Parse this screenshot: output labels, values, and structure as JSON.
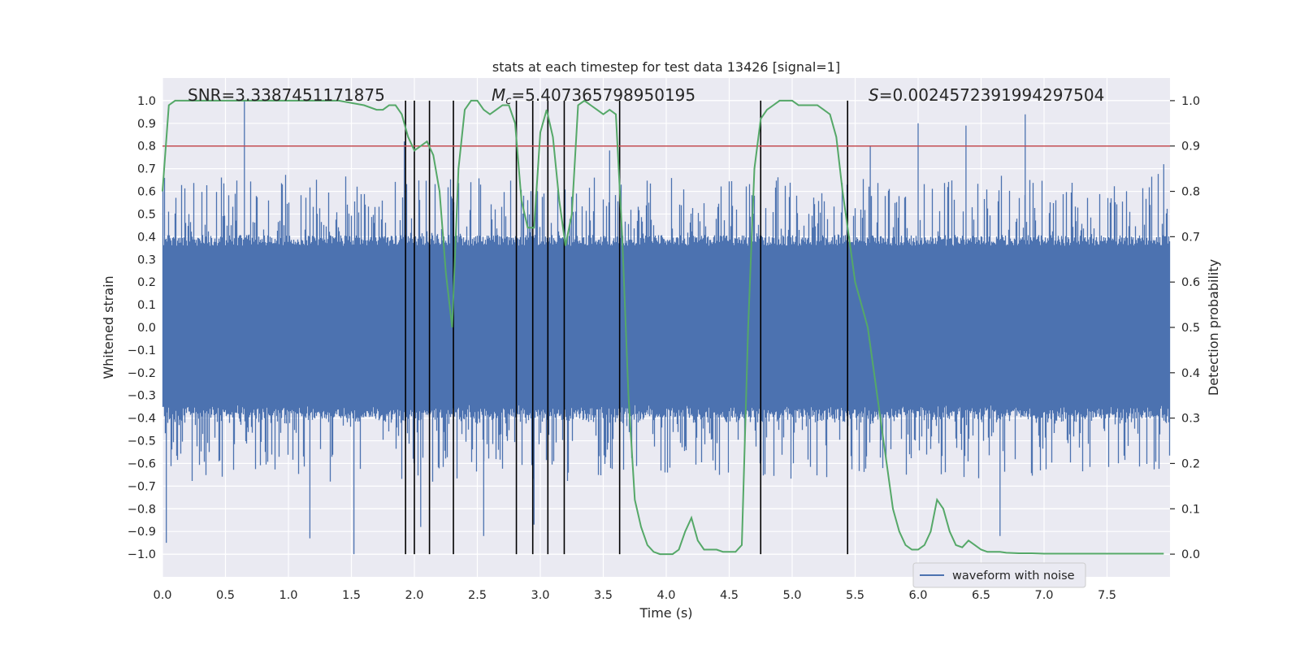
{
  "chart_data": {
    "type": "line",
    "title": "stats at each timestep for test data 13426 [signal=1]",
    "xlabel": "Time (s)",
    "ylabel": "Whitened strain",
    "y2label": "Detection probability",
    "xlim": [
      0.0,
      8.0
    ],
    "ylim": [
      -1.1,
      1.1
    ],
    "y2lim": [
      -0.05,
      1.05
    ],
    "x_ticks": [
      0.0,
      0.5,
      1.0,
      1.5,
      2.0,
      2.5,
      3.0,
      3.5,
      4.0,
      4.5,
      5.0,
      5.5,
      6.0,
      6.5,
      7.0,
      7.5
    ],
    "x_tick_labels": [
      "0.0",
      "0.5",
      "1.0",
      "1.5",
      "2.0",
      "2.5",
      "3.0",
      "3.5",
      "4.0",
      "4.5",
      "5.0",
      "5.5",
      "6.0",
      "6.5",
      "7.0",
      "7.5"
    ],
    "y_ticks": [
      -1.0,
      -0.9,
      -0.8,
      -0.7,
      -0.6,
      -0.5,
      -0.4,
      -0.3,
      -0.2,
      -0.1,
      0.0,
      0.1,
      0.2,
      0.3,
      0.4,
      0.5,
      0.6,
      0.7,
      0.8,
      0.9,
      1.0
    ],
    "y_tick_labels": [
      "−1.0",
      "−0.9",
      "−0.8",
      "−0.7",
      "−0.6",
      "−0.5",
      "−0.4",
      "−0.3",
      "−0.2",
      "−0.1",
      "0.0",
      "0.1",
      "0.2",
      "0.3",
      "0.4",
      "0.5",
      "0.6",
      "0.7",
      "0.8",
      "0.9",
      "1.0"
    ],
    "y2_ticks": [
      0.0,
      0.1,
      0.2,
      0.3,
      0.4,
      0.5,
      0.6,
      0.7,
      0.8,
      0.9,
      1.0
    ],
    "y2_tick_labels": [
      "0.0",
      "0.1",
      "0.2",
      "0.3",
      "0.4",
      "0.5",
      "0.6",
      "0.7",
      "0.8",
      "0.9",
      "1.0"
    ],
    "grid": true,
    "annotations": {
      "snr": "SNR=3.3387451171875",
      "mc_symbol": "M",
      "mc_sub": "c",
      "mc_value": "=5.407365798950195",
      "s_symbol": "S",
      "s_value": "=0.0024572391994297504"
    },
    "threshold": {
      "y": 0.8,
      "color": "#c44e52"
    },
    "vertical_lines_x": [
      1.93,
      2.0,
      2.12,
      2.31,
      2.81,
      2.94,
      3.06,
      3.19,
      3.63,
      4.75,
      5.44
    ],
    "waveform": {
      "name": "waveform with noise",
      "color": "#4c72b0",
      "sample_rate_hz": 2048,
      "duration_s": 8.0,
      "envelope_amplitude": 0.4,
      "spikes": [
        {
          "x": 0.03,
          "y": -0.95
        },
        {
          "x": 0.65,
          "y": 1.0
        },
        {
          "x": 1.17,
          "y": -0.93
        },
        {
          "x": 1.52,
          "y": -1.0
        },
        {
          "x": 1.92,
          "y": 0.82
        },
        {
          "x": 2.05,
          "y": -0.88
        },
        {
          "x": 2.55,
          "y": -0.92
        },
        {
          "x": 2.95,
          "y": -0.87
        },
        {
          "x": 3.55,
          "y": 0.78
        },
        {
          "x": 5.62,
          "y": 0.8
        },
        {
          "x": 6.0,
          "y": 0.9
        },
        {
          "x": 6.38,
          "y": 0.89
        },
        {
          "x": 6.65,
          "y": -0.92
        },
        {
          "x": 6.85,
          "y": 0.94
        },
        {
          "x": 7.95,
          "y": 0.72
        }
      ]
    },
    "detection_probability": {
      "color": "#55a868",
      "x": [
        0.0,
        0.05,
        0.1,
        0.2,
        0.4,
        0.6,
        0.8,
        1.0,
        1.2,
        1.4,
        1.6,
        1.7,
        1.75,
        1.8,
        1.85,
        1.9,
        1.95,
        2.0,
        2.05,
        2.1,
        2.15,
        2.2,
        2.25,
        2.3,
        2.35,
        2.4,
        2.45,
        2.5,
        2.55,
        2.6,
        2.65,
        2.7,
        2.75,
        2.8,
        2.85,
        2.9,
        2.95,
        3.0,
        3.05,
        3.1,
        3.15,
        3.2,
        3.25,
        3.3,
        3.35,
        3.4,
        3.45,
        3.5,
        3.55,
        3.6,
        3.65,
        3.7,
        3.75,
        3.8,
        3.85,
        3.9,
        3.95,
        4.0,
        4.05,
        4.1,
        4.15,
        4.2,
        4.25,
        4.3,
        4.35,
        4.4,
        4.45,
        4.5,
        4.55,
        4.6,
        4.65,
        4.7,
        4.75,
        4.8,
        4.85,
        4.9,
        4.95,
        5.0,
        5.05,
        5.1,
        5.15,
        5.2,
        5.25,
        5.3,
        5.35,
        5.4,
        5.45,
        5.5,
        5.55,
        5.6,
        5.65,
        5.7,
        5.75,
        5.8,
        5.85,
        5.9,
        5.95,
        6.0,
        6.05,
        6.1,
        6.15,
        6.2,
        6.25,
        6.3,
        6.35,
        6.4,
        6.45,
        6.5,
        6.55,
        6.6,
        6.65,
        6.7,
        6.8,
        6.9,
        7.0,
        7.2,
        7.4,
        7.6,
        7.8,
        7.95
      ],
      "y": [
        0.8,
        0.99,
        1.0,
        1.0,
        1.0,
        1.0,
        1.0,
        1.0,
        1.0,
        1.0,
        0.99,
        0.98,
        0.98,
        0.99,
        0.99,
        0.97,
        0.92,
        0.89,
        0.9,
        0.91,
        0.88,
        0.8,
        0.62,
        0.5,
        0.85,
        0.98,
        1.0,
        1.0,
        0.98,
        0.97,
        0.98,
        0.99,
        0.99,
        0.95,
        0.78,
        0.72,
        0.72,
        0.93,
        0.98,
        0.92,
        0.78,
        0.68,
        0.75,
        0.99,
        1.0,
        0.99,
        0.98,
        0.97,
        0.98,
        0.97,
        0.7,
        0.35,
        0.12,
        0.06,
        0.02,
        0.005,
        0.0,
        0.0,
        0.0,
        0.01,
        0.05,
        0.08,
        0.03,
        0.01,
        0.01,
        0.01,
        0.005,
        0.005,
        0.005,
        0.02,
        0.5,
        0.85,
        0.96,
        0.98,
        0.99,
        1.0,
        1.0,
        1.0,
        0.99,
        0.99,
        0.99,
        0.99,
        0.98,
        0.97,
        0.92,
        0.8,
        0.7,
        0.6,
        0.55,
        0.5,
        0.4,
        0.3,
        0.2,
        0.1,
        0.05,
        0.02,
        0.01,
        0.01,
        0.02,
        0.05,
        0.12,
        0.1,
        0.05,
        0.02,
        0.015,
        0.03,
        0.02,
        0.01,
        0.005,
        0.005,
        0.005,
        0.003,
        0.002,
        0.002,
        0.001,
        0.001,
        0.001,
        0.001,
        0.001,
        0.001
      ]
    },
    "legend": {
      "placement": "lower-center-right",
      "entries": [
        "waveform with noise"
      ]
    }
  }
}
